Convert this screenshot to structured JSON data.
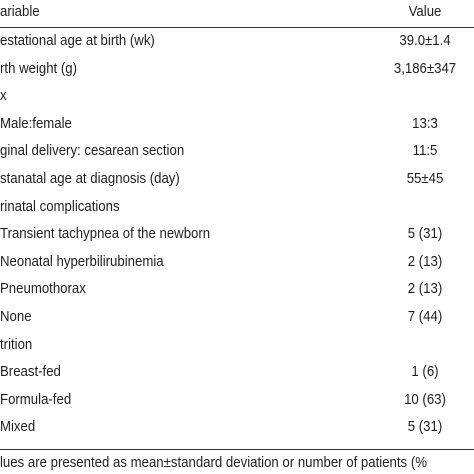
{
  "table": {
    "header": [
      "ariable",
      "Value"
    ],
    "rows": [
      [
        "estational age at birth (wk)",
        "39.0±1.4"
      ],
      [
        "rth weight (g)",
        "3,186±347"
      ],
      [
        "x",
        null
      ],
      [
        "Male:female",
        "13:3"
      ],
      [
        "ginal delivery: cesarean section",
        "11:5"
      ],
      [
        "stanatal age at diagnosis (day)",
        "55±45"
      ],
      [
        "rinatal complications",
        null
      ],
      [
        "Transient tachypnea of the newborn",
        "5 (31)"
      ],
      [
        "Neonatal hyperbilirubinemia",
        "2 (13)"
      ],
      [
        "Pneumothorax",
        "2 (13)"
      ],
      [
        "None",
        "7 (44)"
      ],
      [
        "trition",
        null
      ],
      [
        "Breast-fed",
        "1 (6)"
      ],
      [
        "Formula-fed",
        "10 (63)"
      ],
      [
        "Mixed",
        "5 (31)"
      ]
    ],
    "footnote": "lues are presented as mean±standard deviation or number of patients (%"
  }
}
